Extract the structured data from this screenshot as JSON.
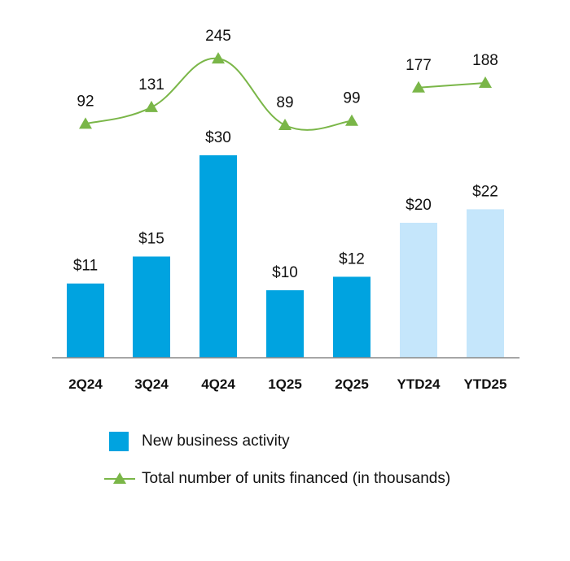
{
  "colors": {
    "bar_quarter": "#00a3e0",
    "bar_ytd": "#c5e6fb",
    "line": "#7ab648",
    "axis": "#888888"
  },
  "chart_data": {
    "type": "bar",
    "categories": [
      "2Q24",
      "3Q24",
      "4Q24",
      "1Q25",
      "2Q25",
      "YTD24",
      "YTD25"
    ],
    "series": [
      {
        "name": "New business activity",
        "type": "bar",
        "values": [
          11,
          15,
          30,
          10,
          12,
          20,
          22
        ],
        "labels": [
          "$11",
          "$15",
          "$30",
          "$10",
          "$12",
          "$20",
          "$22"
        ],
        "shade": [
          "quarter",
          "quarter",
          "quarter",
          "quarter",
          "quarter",
          "ytd",
          "ytd"
        ]
      },
      {
        "name": "Total number of units financed (in thousands)",
        "type": "line",
        "marker": "triangle",
        "values": [
          92,
          131,
          245,
          89,
          99,
          177,
          188
        ],
        "labels": [
          "92",
          "131",
          "245",
          "89",
          "99",
          "177",
          "188"
        ],
        "segments": [
          [
            0,
            4
          ],
          [
            5,
            6
          ]
        ]
      }
    ],
    "legend": "bottom",
    "grid": false
  },
  "legend": {
    "bar_label": "New business activity",
    "line_label": "Total number of units financed (in thousands)"
  }
}
